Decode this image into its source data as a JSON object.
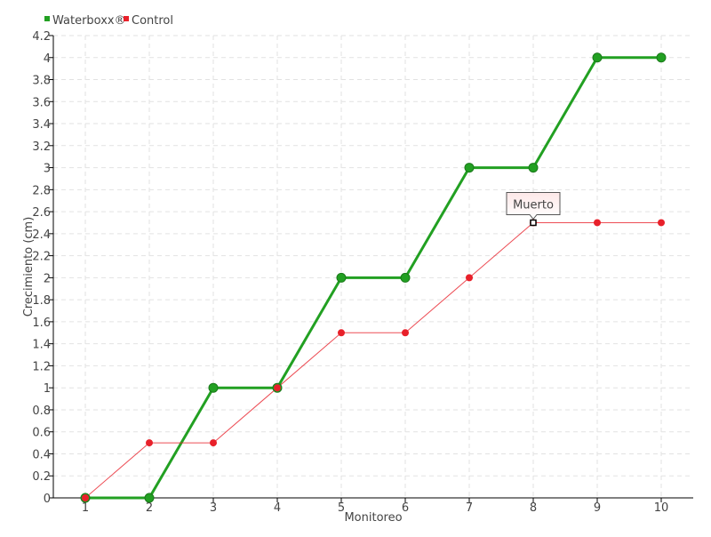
{
  "chart_data": {
    "type": "line",
    "title": "",
    "xlabel": "Monitoreo",
    "ylabel": "Crecimiento (cm)",
    "categories": [
      "1",
      "2",
      "3",
      "4",
      "5",
      "6",
      "7",
      "8",
      "9",
      "10"
    ],
    "ylim": [
      0,
      4.2
    ],
    "yticks": [
      "0",
      "0.2",
      "0.4",
      "0.6",
      "0.8",
      "1",
      "1.2",
      "1.4",
      "1.6",
      "1.8",
      "2",
      "2.2",
      "2.4",
      "2.6",
      "2.8",
      "3",
      "3.2",
      "3.4",
      "3.6",
      "3.8",
      "4",
      "4.2"
    ],
    "grid": true,
    "legend": "top-left",
    "series": [
      {
        "name": "Waterboxx®",
        "color": "#22a022",
        "values": [
          0,
          0,
          1,
          1,
          2,
          2,
          3,
          3,
          4,
          4
        ]
      },
      {
        "name": "Control",
        "color": "#e8202a",
        "values": [
          0,
          0.5,
          0.5,
          1,
          1.5,
          1.5,
          2,
          2.5,
          2.5,
          2.5
        ]
      }
    ],
    "annotations": [
      {
        "series": "Control",
        "category": "8",
        "text": "Muerto"
      }
    ]
  }
}
